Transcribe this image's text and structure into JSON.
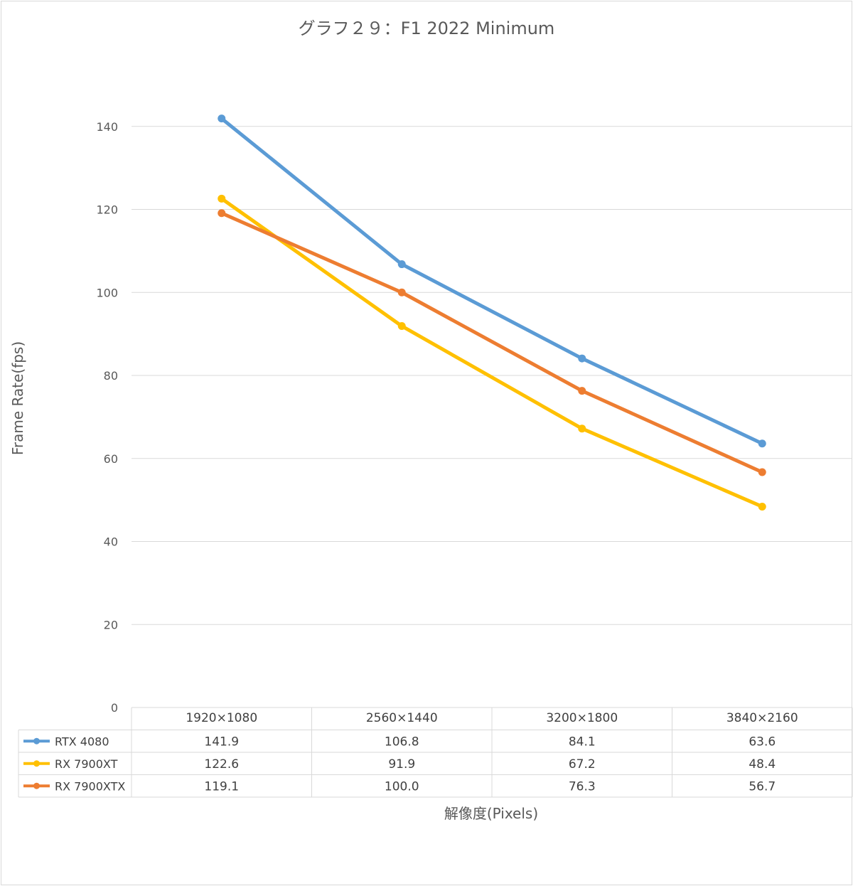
{
  "chart_data": {
    "type": "line",
    "title": "グラフ２９：F1 2022 Minimum",
    "xlabel": "解像度(Pixels)",
    "ylabel": "Frame Rate(fps)",
    "categories": [
      "1920×1080",
      "2560×1440",
      "3200×1800",
      "3840×2160"
    ],
    "ylim": [
      0,
      160
    ],
    "yticks": [
      0,
      20,
      40,
      60,
      80,
      100,
      120,
      140
    ],
    "grid": true,
    "legend": "data-table",
    "series": [
      {
        "name": "RTX 4080",
        "color": "#5B9BD5",
        "values": [
          141.9,
          106.8,
          84.1,
          63.6
        ],
        "labels": [
          "141.9",
          "106.8",
          "84.1",
          "63.6"
        ]
      },
      {
        "name": "RX 7900XT",
        "color": "#FFC000",
        "values": [
          122.6,
          91.9,
          67.2,
          48.4
        ],
        "labels": [
          "122.6",
          "91.9",
          "67.2",
          "48.4"
        ]
      },
      {
        "name": "RX 7900XTX",
        "color": "#ED7D31",
        "values": [
          119.1,
          100.0,
          76.3,
          56.7
        ],
        "labels": [
          "119.1",
          "100.0",
          "76.3",
          "56.7"
        ]
      }
    ]
  }
}
